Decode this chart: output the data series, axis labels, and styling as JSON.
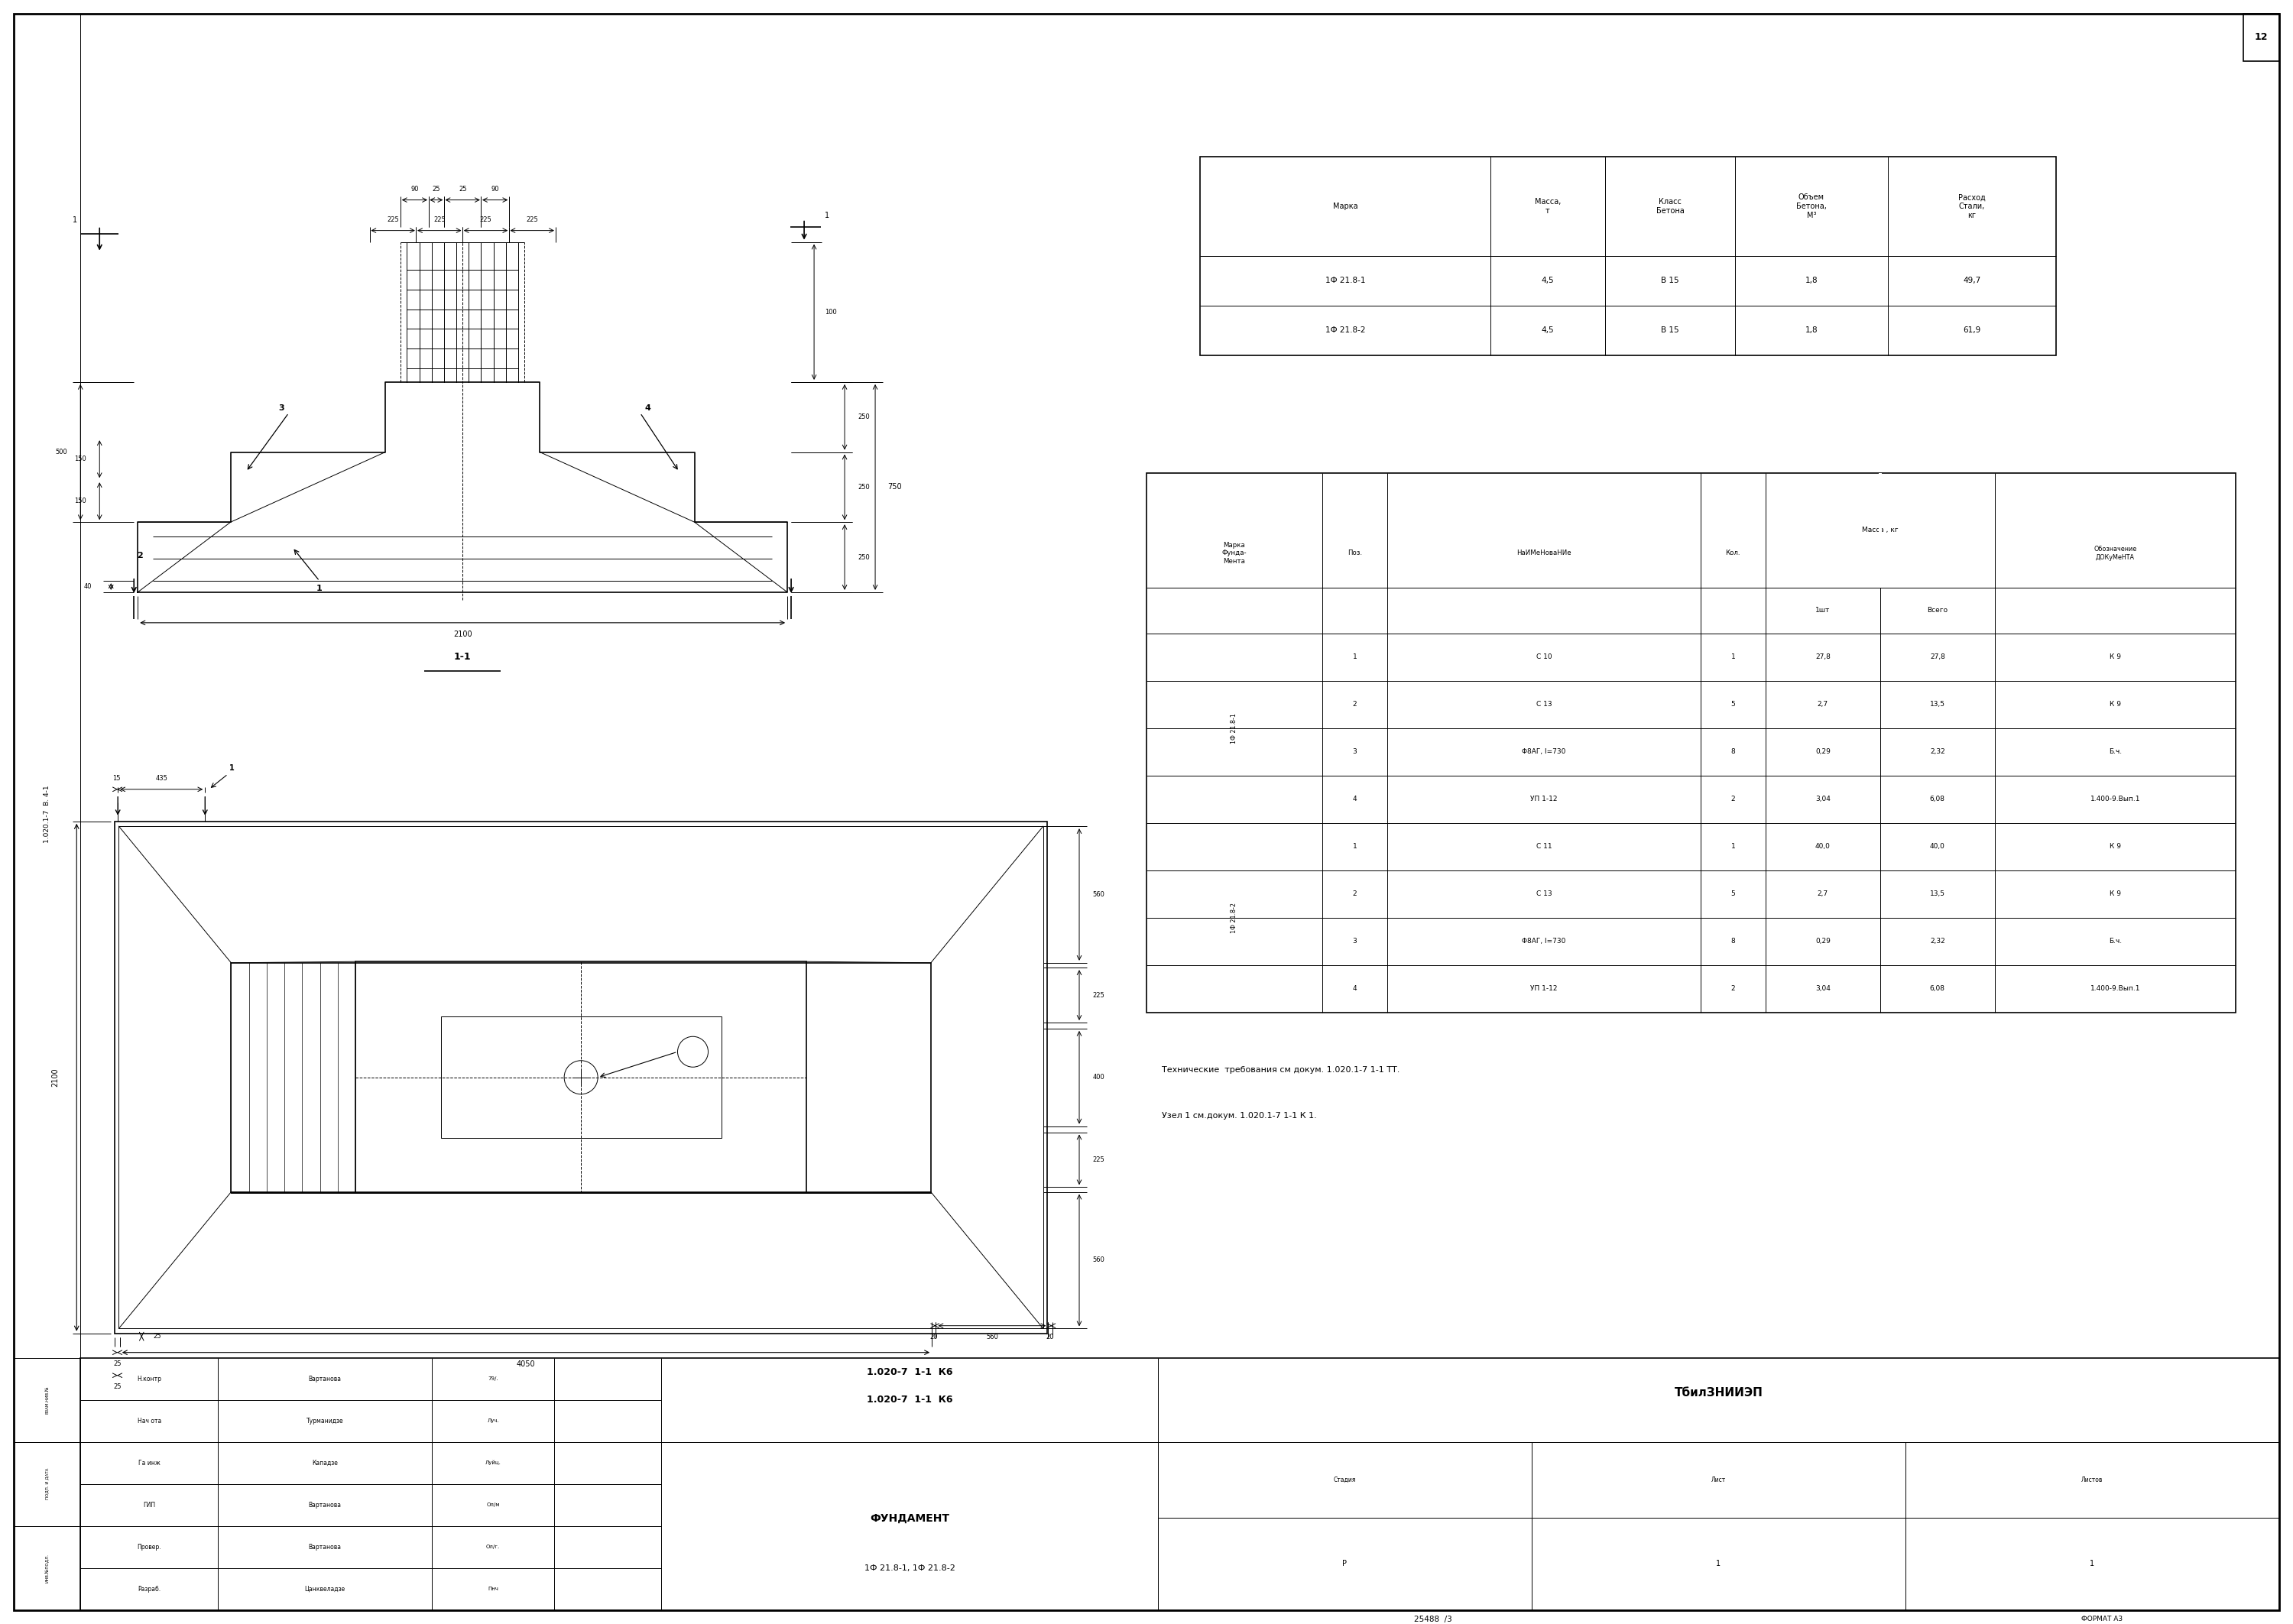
{
  "bg_color": "#ffffff",
  "page_num": "12",
  "left_label": "1.020.1-7  В. 4-1",
  "section_label": "1-1",
  "tech_note1": "Технические  требования см докум. 1.020.1-7 1-1 ТТ.",
  "tech_note2": "Узел 1 см.докум. 1.020.1-7 1-1 К 1.",
  "table1_headers": [
    "Марка",
    "Масса,\nт",
    "Класс\nБетона",
    "Объем\nБетона,\nМ³",
    "Расход\nСтали,\nкг"
  ],
  "table1_rows": [
    [
      "1Ф 21.8-1",
      "4,5",
      "В 15",
      "1,8",
      "49,7"
    ],
    [
      "1Ф 21.8-2",
      "4,5",
      "В 15",
      "1,8",
      "61,9"
    ]
  ],
  "table2_rows": [
    [
      "1",
      "С 10",
      "1",
      "27,8",
      "27,8",
      "К 9"
    ],
    [
      "2",
      "С 13",
      "5",
      "2,7",
      "13,5",
      "К 9"
    ],
    [
      "3",
      "Φ8АГ, l=730",
      "8",
      "0,29",
      "2,32",
      "Б.ч."
    ],
    [
      "4",
      "УП 1-12",
      "2",
      "3,04",
      "6,08",
      "1.400-9.Вып.1"
    ],
    [
      "1",
      "С 11",
      "1",
      "40,0",
      "40,0",
      "К 9"
    ],
    [
      "2",
      "С 13",
      "5",
      "2,7",
      "13,5",
      "К 9"
    ],
    [
      "3",
      "Φ8АГ, l=730",
      "8",
      "0,29",
      "2,32",
      "Б.ч."
    ],
    [
      "4",
      "УП 1-12",
      "2",
      "3,04",
      "6,08",
      "1.400-9.Вып.1"
    ]
  ],
  "title_doc_num": "1.020-7  1-1  К6",
  "title_fund_name": "ФУНДАМЕНТ",
  "title_fund_marks": "1Ф 21.8-1, 1Ф 21.8-2",
  "title_org": "ТбилЗНИИЭП",
  "title_stage": "Р",
  "title_sheet": "1",
  "title_sheets": "1",
  "bottom_num": "25488  /3",
  "bottom_format": "ФОРМАТ А3",
  "roles": [
    "Разраб.",
    "Провер.",
    "ГИП",
    "Га инж",
    "Нач ота",
    "Н.контр"
  ],
  "names": [
    "Цанквеладзе",
    "Вартанова",
    "Вартанова",
    "Кападзе",
    "Турманидзе",
    "Вартанова"
  ]
}
